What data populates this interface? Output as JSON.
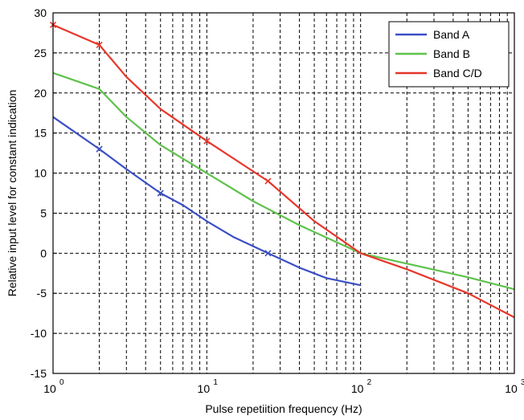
{
  "chart_data": {
    "type": "line",
    "title": "",
    "xlabel": "Pulse repetiition frequency (Hz)",
    "ylabel": "Relative input level for constant indication",
    "xscale": "log",
    "xlim": [
      1,
      1000
    ],
    "ylim": [
      -15,
      30
    ],
    "grid": true,
    "legend_position": "top-right",
    "x_ticks": [
      {
        "value": 1,
        "base": "10",
        "exp": "0"
      },
      {
        "value": 10,
        "base": "10",
        "exp": "1"
      },
      {
        "value": 100,
        "base": "10",
        "exp": "2"
      },
      {
        "value": 1000,
        "base": "10",
        "exp": "3"
      }
    ],
    "y_ticks": [
      30,
      25,
      20,
      15,
      10,
      5,
      0,
      -5,
      -10,
      -15
    ],
    "series": [
      {
        "name": "Band A",
        "color": "#3c4fc4",
        "x": [
          1,
          2,
          3,
          5,
          7,
          10,
          15,
          25,
          40,
          60,
          100
        ],
        "y": [
          17,
          13,
          10.5,
          7.5,
          6,
          4,
          2,
          0,
          -1.8,
          -3.1,
          -4
        ],
        "markers": [
          [
            2,
            13
          ],
          [
            5,
            7.5
          ],
          [
            25,
            0
          ]
        ]
      },
      {
        "name": "Band B",
        "color": "#5fc24c",
        "x": [
          1,
          2,
          3,
          5,
          10,
          20,
          40,
          100,
          200,
          500,
          1000
        ],
        "y": [
          22.5,
          20.5,
          17,
          13.5,
          10,
          6.5,
          3.5,
          0,
          -1.3,
          -3,
          -4.5
        ],
        "markers": []
      },
      {
        "name": "Band C/D",
        "color": "#e8362a",
        "x": [
          1,
          2,
          3,
          5,
          10,
          25,
          50,
          100,
          200,
          500,
          1000
        ],
        "y": [
          28.5,
          26,
          22,
          18,
          14,
          9,
          4,
          0,
          -2,
          -5,
          -8
        ],
        "markers": [
          [
            1,
            28.5
          ],
          [
            2,
            26
          ],
          [
            10,
            14
          ],
          [
            25,
            9
          ]
        ]
      }
    ]
  }
}
